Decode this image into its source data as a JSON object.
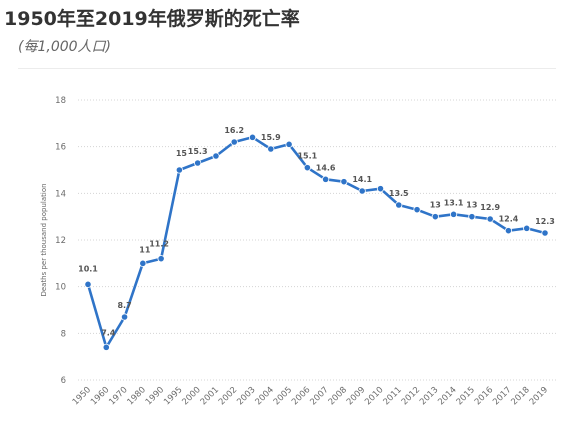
{
  "header": {
    "title": "1950年至2019年俄罗斯的死亡率",
    "subtitle": "(每1,000人口)"
  },
  "chart_data": {
    "type": "line",
    "title": "1950年至2019年俄罗斯的死亡率",
    "subtitle": "(每1,000人口)",
    "xlabel": "",
    "ylabel": "Deaths per thousand population",
    "x": [
      "1950",
      "1960",
      "1970",
      "1980",
      "1990",
      "1995",
      "2000",
      "2001",
      "2002",
      "2003",
      "2004",
      "2005",
      "2006",
      "2007",
      "2008",
      "2009",
      "2010",
      "2011",
      "2012",
      "2013",
      "2014",
      "2015",
      "2016",
      "2017",
      "2018",
      "2019"
    ],
    "series": [
      {
        "values": [
          10.1,
          7.4,
          8.7,
          11,
          11.2,
          15,
          15.3,
          15.6,
          16.2,
          16.4,
          15.9,
          16.1,
          15.1,
          14.6,
          14.5,
          14.1,
          14.2,
          13.5,
          13.3,
          13,
          13.1,
          13,
          12.9,
          12.4,
          12.5,
          12.3
        ],
        "color": "#2f74c8"
      }
    ],
    "data_labels": [
      "10.1",
      "7.4",
      "8.7",
      "11",
      "11.2",
      "15",
      "15.3",
      "",
      "16.2",
      "",
      "15.9",
      "",
      "15.1",
      "14.6",
      "",
      "14.1",
      "",
      "13.5",
      "",
      "13",
      "13.1",
      "13",
      "12.9",
      "12.4",
      "",
      "12.3"
    ],
    "yticks": [
      "6",
      "8",
      "10",
      "12",
      "14",
      "16",
      "18"
    ],
    "ylim": [
      6,
      18
    ],
    "grid": true,
    "gridline_style": "dotted",
    "line_color": "#2f74c8"
  }
}
